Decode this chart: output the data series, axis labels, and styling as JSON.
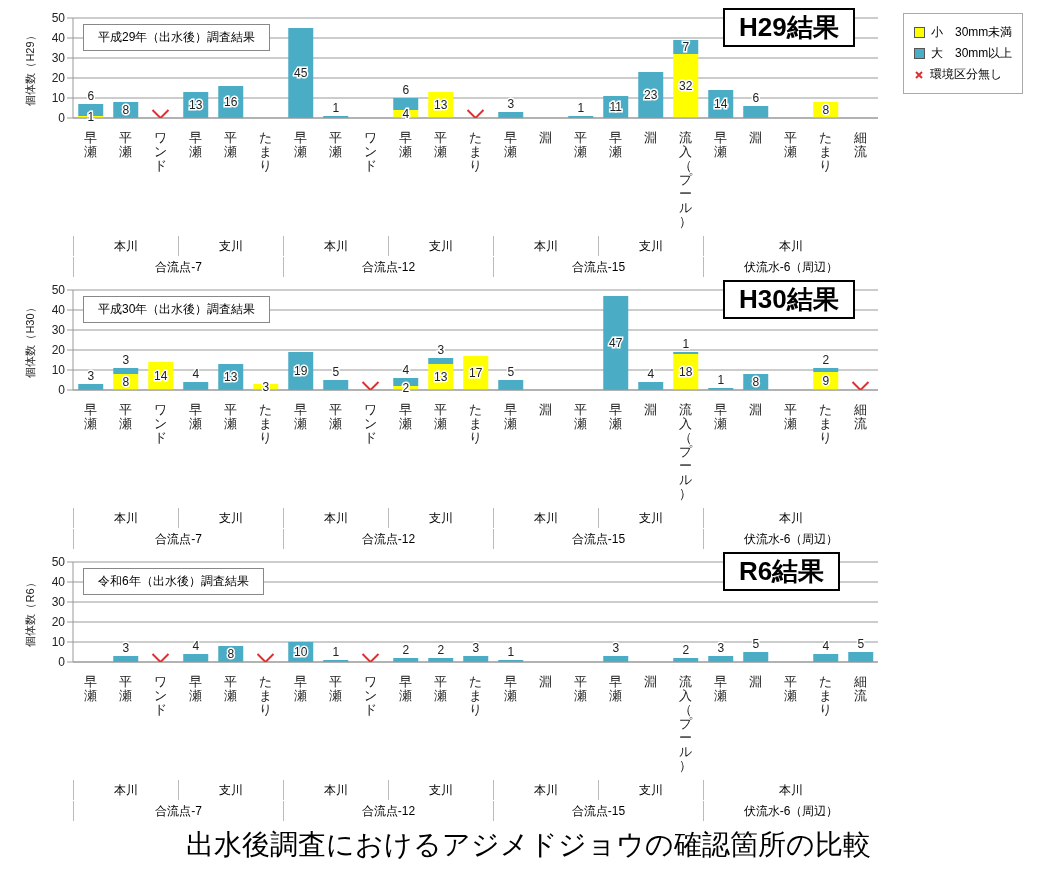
{
  "chart_data": [
    {
      "type": "bar",
      "title": "H29結果",
      "subtitle": "平成29年（出水後）調査結果",
      "ylabel": "個体数（H29）",
      "stacked": true,
      "grid": "y",
      "legend": "top right",
      "marker": "cross",
      "categories": [
        "早瀬",
        "平瀬",
        "ワンド",
        "早瀬",
        "平瀬",
        "たまり",
        "早瀬",
        "平瀬",
        "ワンド",
        "早瀬",
        "平瀬",
        "たまり",
        "早瀬",
        "淵",
        "平瀬",
        "早瀬",
        "淵",
        "流入（プール）",
        "早瀬",
        "淵",
        "平瀬",
        "たまり",
        "細流"
      ],
      "ylim": [
        0,
        50
      ],
      "yticks": [
        0,
        10,
        20,
        30,
        40,
        50
      ],
      "series": [
        {
          "name": "小　30mm未満",
          "color": "#ffff00",
          "values": [
            1,
            null,
            null,
            null,
            null,
            null,
            null,
            null,
            null,
            4,
            13,
            null,
            null,
            null,
            null,
            null,
            null,
            32,
            null,
            null,
            null,
            8,
            null
          ],
          "value_labels": [
            "1",
            null,
            null,
            null,
            null,
            null,
            null,
            null,
            null,
            "4",
            "13",
            null,
            null,
            null,
            null,
            null,
            null,
            "32",
            null,
            null,
            null,
            "8",
            null
          ]
        },
        {
          "name": "大　30mm以上",
          "color": "#4bacc6",
          "values": [
            6,
            8,
            null,
            13,
            16,
            null,
            45,
            1,
            null,
            6,
            null,
            null,
            3,
            null,
            1,
            11,
            23,
            7,
            14,
            6,
            null,
            null,
            null
          ],
          "value_labels": [
            "6",
            "8",
            null,
            "13",
            "16",
            null,
            "45",
            "1",
            null,
            "6",
            null,
            null,
            "3",
            null,
            "1",
            "11",
            "23",
            "7",
            "14",
            "6",
            null,
            null,
            null
          ]
        },
        {
          "name": "環境区分無し",
          "type": "scatter",
          "color": "#e03030",
          "values": [
            null,
            null,
            0,
            null,
            null,
            null,
            null,
            null,
            null,
            null,
            null,
            0,
            null,
            null,
            null,
            null,
            null,
            null,
            null,
            null,
            null,
            null,
            null
          ]
        }
      ],
      "annotations": [
        "本川",
        "支川",
        "本川",
        "支川",
        "本川",
        "支川",
        "本川",
        "合流点-7",
        "合流点-12",
        "合流点-15",
        "伏流水-6（周辺）"
      ]
    },
    {
      "type": "bar",
      "title": "H30結果",
      "subtitle": "平成30年（出水後）調査結果",
      "ylabel": "個体数（H30）",
      "stacked": true,
      "grid": "y",
      "marker": "cross",
      "categories": [
        "早瀬",
        "平瀬",
        "ワンド",
        "早瀬",
        "平瀬",
        "たまり",
        "早瀬",
        "平瀬",
        "ワンド",
        "早瀬",
        "平瀬",
        "たまり",
        "早瀬",
        "淵",
        "平瀬",
        "早瀬",
        "淵",
        "流入（プール）",
        "早瀬",
        "淵",
        "平瀬",
        "たまり",
        "細流"
      ],
      "ylim": [
        0,
        50
      ],
      "yticks": [
        0,
        10,
        20,
        30,
        40,
        50
      ],
      "series": [
        {
          "color": "#ffff00",
          "values": [
            null,
            8,
            14,
            null,
            null,
            3,
            null,
            null,
            null,
            2,
            13,
            17,
            null,
            null,
            null,
            null,
            null,
            18,
            null,
            null,
            null,
            9,
            null
          ],
          "value_labels": [
            null,
            "8",
            "14",
            null,
            null,
            "3",
            null,
            null,
            null,
            "2",
            "13",
            "17",
            null,
            null,
            null,
            null,
            null,
            "18",
            null,
            null,
            null,
            "9",
            null
          ]
        },
        {
          "color": "#4bacc6",
          "values": [
            3,
            3,
            null,
            4,
            13,
            null,
            19,
            5,
            null,
            4,
            3,
            null,
            5,
            null,
            null,
            47,
            4,
            1,
            1,
            8,
            null,
            2,
            null
          ],
          "value_labels": [
            "3",
            "3",
            null,
            "4",
            "13",
            null,
            "19",
            "5",
            null,
            "4",
            "3",
            null,
            "5",
            null,
            null,
            "47",
            "4",
            "1",
            "1",
            "8",
            null,
            "2",
            null
          ]
        },
        {
          "type": "scatter",
          "color": "#e03030",
          "values": [
            null,
            null,
            null,
            null,
            null,
            null,
            null,
            null,
            0,
            null,
            null,
            null,
            null,
            null,
            null,
            null,
            null,
            null,
            null,
            null,
            null,
            null,
            0
          ]
        }
      ],
      "annotations": [
        "本川",
        "支川",
        "本川",
        "支川",
        "本川",
        "支川",
        "本川",
        "合流点-7",
        "合流点-12",
        "合流点-15",
        "伏流水-6（周辺）"
      ]
    },
    {
      "type": "bar",
      "title": "R6結果",
      "subtitle": "令和6年（出水後）調査結果",
      "ylabel": "個体数（R6）",
      "stacked": true,
      "grid": "y",
      "marker": "cross",
      "categories": [
        "早瀬",
        "平瀬",
        "ワンド",
        "早瀬",
        "平瀬",
        "たまり",
        "早瀬",
        "平瀬",
        "ワンド",
        "早瀬",
        "平瀬",
        "たまり",
        "早瀬",
        "淵",
        "平瀬",
        "早瀬",
        "淵",
        "流入（プール）",
        "早瀬",
        "淵",
        "平瀬",
        "たまり",
        "細流"
      ],
      "ylim": [
        0,
        50
      ],
      "yticks": [
        0,
        10,
        20,
        30,
        40,
        50
      ],
      "series": [
        {
          "color": "#4bacc6",
          "values": [
            null,
            3,
            null,
            4,
            8,
            null,
            10,
            1,
            null,
            2,
            2,
            3,
            1,
            null,
            null,
            3,
            null,
            2,
            3,
            5,
            null,
            4,
            5
          ],
          "value_labels": [
            null,
            "3",
            null,
            "4",
            "8",
            null,
            "10",
            "1",
            null,
            "2",
            "2",
            "3",
            "1",
            null,
            null,
            "3",
            null,
            "2",
            "3",
            "5",
            null,
            "4",
            "5"
          ]
        },
        {
          "type": "scatter",
          "color": "#e03030",
          "values": [
            null,
            null,
            0,
            null,
            null,
            0,
            null,
            null,
            0,
            null,
            null,
            null,
            null,
            null,
            null,
            null,
            null,
            null,
            null,
            null,
            null,
            null,
            null
          ]
        }
      ],
      "annotations": [
        "本川",
        "支川",
        "本川",
        "支川",
        "本川",
        "支川",
        "本川",
        "合流点-7",
        "合流点-12",
        "合流点-15",
        "伏流水-6（周辺）",
        "出水後調査におけるアジメドジョウの確認箇所の比較"
      ]
    }
  ]
}
